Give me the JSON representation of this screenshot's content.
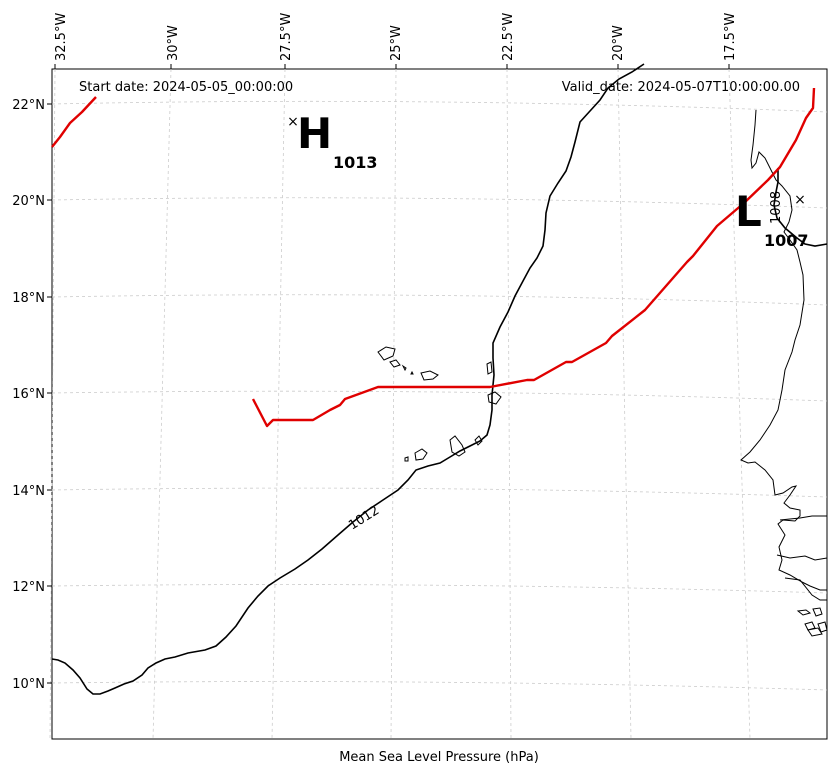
{
  "map": {
    "start_date": "Start date: 2024-05-05_00:00:00",
    "valid_date": "Valid_date: 2024-05-07T10:00:00.00",
    "xlabel": "Mean Sea Level Pressure (hPa)",
    "longitude_ticks": [
      "32.5°W",
      "30°W",
      "27.5°W",
      "25°W",
      "22.5°W",
      "20°W",
      "17.5°W"
    ],
    "latitude_ticks": [
      "22°N",
      "20°N",
      "18°N",
      "16°N",
      "14°N",
      "12°N",
      "10°N"
    ],
    "high": {
      "letter": "H",
      "value": "1013",
      "lon": -27.4,
      "lat": 21.7
    },
    "low": {
      "letter": "L",
      "value": "1007",
      "lon": -16.0,
      "lat": 20.1
    },
    "contour_labels": [
      "1012",
      "1008"
    ],
    "track_color": "#e00000",
    "isobar_color": "#000000"
  }
}
